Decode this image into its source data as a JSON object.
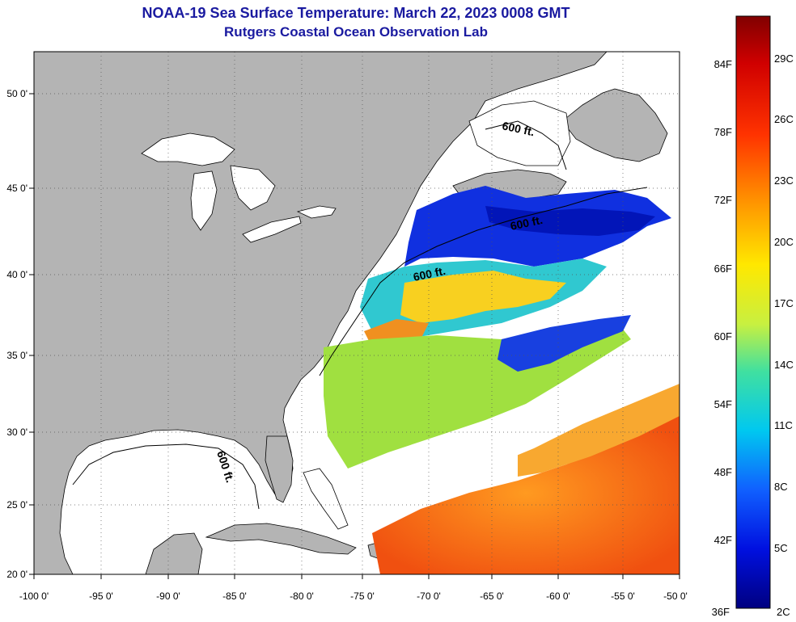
{
  "title": {
    "line1": "NOAA-19 Sea Surface Temperature:  March 22, 2023 0008 GMT",
    "line2": "Rutgers Coastal Ocean Observation Lab"
  },
  "axes": {
    "lon_labels": [
      "-100 0'",
      "-95 0'",
      "-90 0'",
      "-85 0'",
      "-80 0'",
      "-75 0'",
      "-70 0'",
      "-65 0'",
      "-60 0'",
      "-55 0'",
      "-50 0'"
    ],
    "lat_labels": [
      "50 0'",
      "45 0'",
      "40 0'",
      "35 0'",
      "30 0'",
      "25 0'",
      "20 0'"
    ]
  },
  "contours": {
    "label": "600 ft."
  },
  "colorbar": {
    "fahrenheit": [
      "84F",
      "78F",
      "72F",
      "66F",
      "60F",
      "54F",
      "48F",
      "42F",
      "36F"
    ],
    "celsius": [
      "29C",
      "26C",
      "23C",
      "20C",
      "17C",
      "14C",
      "11C",
      "8C",
      "5C",
      "2C"
    ]
  },
  "colors": {
    "land": "#b4b4b4",
    "water": "#ffffff",
    "title": "#1a1aa0"
  }
}
